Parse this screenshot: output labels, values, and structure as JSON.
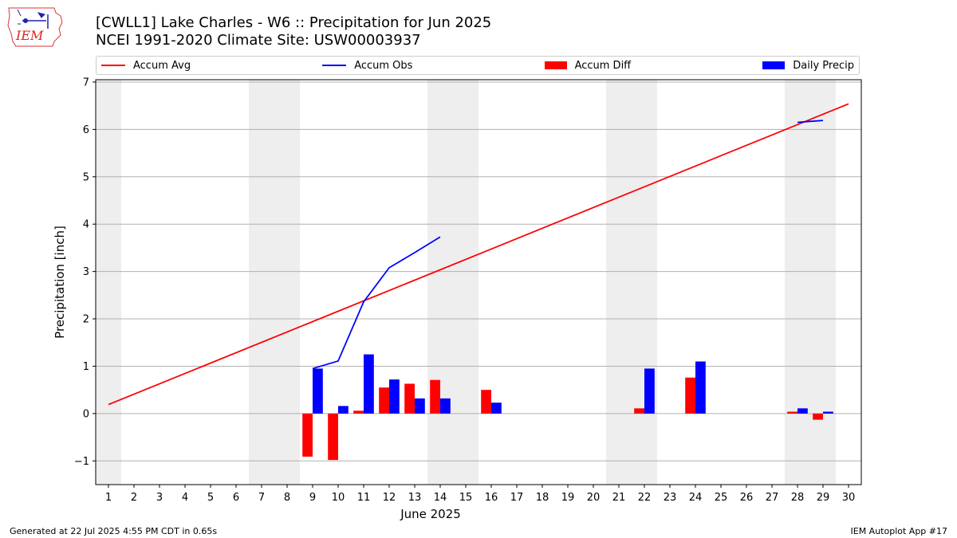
{
  "header": {
    "title_line1": "[CWLL1] Lake Charles - W6 :: Precipitation for Jun 2025",
    "title_line2": "NCEI 1991-2020 Climate Site: USW00003937",
    "logo_text": "IEM"
  },
  "footer": {
    "left": "Generated at 22 Jul 2025 4:55 PM CDT in 0.65s",
    "right": "IEM Autoplot App #17"
  },
  "colors": {
    "accum_avg": "#ff0000",
    "accum_obs": "#0000ff",
    "accum_diff": "#ff0000",
    "daily_precip": "#0000ff",
    "weekend_shade": "#eeeeee",
    "grid": "#b0b0b0"
  },
  "chart_data": {
    "type": "bar",
    "xlabel": "June 2025",
    "ylabel": "Precipitation [inch]",
    "ylim": [
      -1.5,
      7.05
    ],
    "xlim": [
      0.5,
      30.5
    ],
    "yticks": [
      -1,
      0,
      1,
      2,
      3,
      4,
      5,
      6,
      7
    ],
    "ytick_labels": [
      "−1",
      "0",
      "1",
      "2",
      "3",
      "4",
      "5",
      "6",
      "7"
    ],
    "x": [
      1,
      2,
      3,
      4,
      5,
      6,
      7,
      8,
      9,
      10,
      11,
      12,
      13,
      14,
      15,
      16,
      17,
      18,
      19,
      20,
      21,
      22,
      23,
      24,
      25,
      26,
      27,
      28,
      29,
      30
    ],
    "x_tick_labels": [
      "1",
      "2",
      "3",
      "4",
      "5",
      "6",
      "7",
      "8",
      "9",
      "10",
      "11",
      "12",
      "13",
      "14",
      "15",
      "16",
      "17",
      "18",
      "19",
      "20",
      "21",
      "22",
      "23",
      "24",
      "25",
      "26",
      "27",
      "28",
      "29",
      "30"
    ],
    "grid": "horizontal",
    "legend_position": "top",
    "weekend_shading": [
      [
        0.5,
        1.5
      ],
      [
        6.5,
        8.5
      ],
      [
        13.5,
        15.5
      ],
      [
        20.5,
        22.5
      ],
      [
        27.5,
        29.5
      ]
    ],
    "series": [
      {
        "name": "Accum Avg",
        "kind": "line",
        "x": [
          1,
          30
        ],
        "values": [
          0.19,
          6.54
        ]
      },
      {
        "name": "Accum Obs",
        "kind": "line",
        "segments": [
          {
            "x": [
              9,
              10,
              11,
              12,
              13,
              14
            ],
            "values": [
              0.95,
              1.11,
              2.36,
              3.08,
              3.4,
              3.73
            ]
          },
          {
            "x": [
              28,
              29
            ],
            "values": [
              6.15,
              6.19
            ]
          }
        ]
      },
      {
        "name": "Accum Diff",
        "kind": "bar",
        "x": [
          9,
          10,
          11,
          12,
          13,
          14,
          16,
          22,
          24,
          28,
          29
        ],
        "values": [
          -0.91,
          -0.98,
          0.06,
          0.55,
          0.63,
          0.71,
          0.5,
          0.11,
          0.76,
          0.04,
          -0.13
        ]
      },
      {
        "name": "Daily Precip",
        "kind": "bar",
        "x": [
          9,
          10,
          11,
          12,
          13,
          14,
          16,
          22,
          24,
          28,
          29
        ],
        "values": [
          0.95,
          0.16,
          1.25,
          0.72,
          0.32,
          0.32,
          0.23,
          0.95,
          1.1,
          0.11,
          0.04
        ]
      }
    ]
  }
}
